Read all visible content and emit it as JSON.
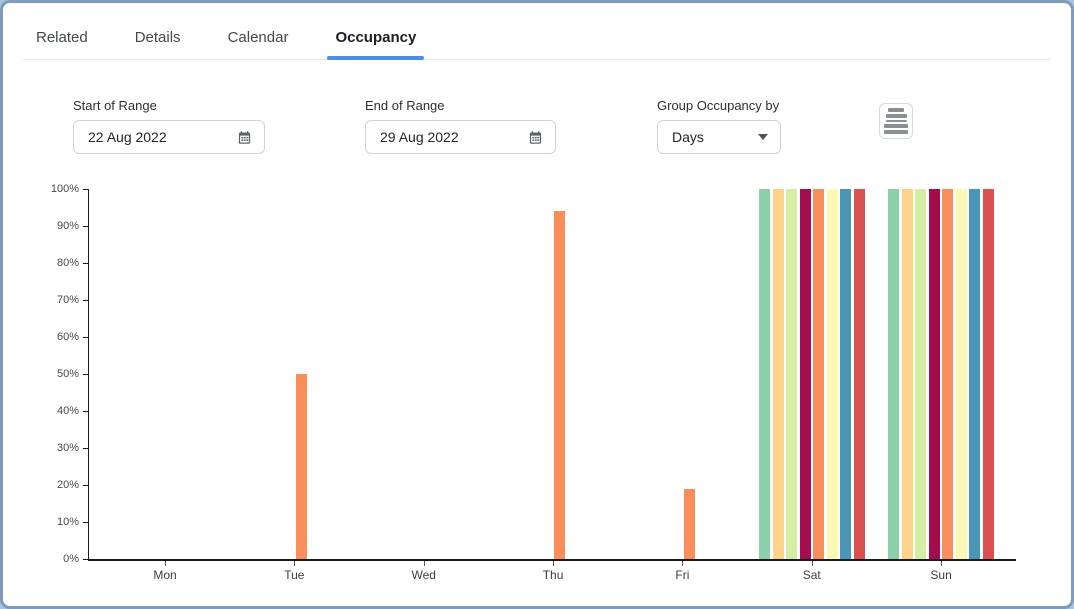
{
  "tabs": [
    {
      "label": "Related",
      "active": false
    },
    {
      "label": "Details",
      "active": false
    },
    {
      "label": "Calendar",
      "active": false
    },
    {
      "label": "Occupancy",
      "active": true
    }
  ],
  "controls": {
    "start_label": "Start of Range",
    "start_value": "22 Aug 2022",
    "end_label": "End of Range",
    "end_value": "29 Aug 2022",
    "group_label": "Group Occupancy by",
    "group_value": "Days"
  },
  "icons": {
    "calendar-icon": "calendar grid glyph",
    "dropdown-caret-icon": "▼",
    "chart-menu-icon": "stacked horizontal bars"
  },
  "colors": {
    "accent": "#4a90e2",
    "card_border": "#7e9bba",
    "page_bg": "#a9c3de",
    "axis": "#17191c"
  },
  "chart_data": {
    "type": "bar",
    "title": "",
    "xlabel": "",
    "ylabel": "",
    "categories": [
      "Mon",
      "Tue",
      "Wed",
      "Thu",
      "Fri",
      "Sat",
      "Sun"
    ],
    "series": [
      {
        "color": "#8bd0a8",
        "values": [
          0,
          0,
          0,
          0,
          0,
          100,
          100
        ]
      },
      {
        "color": "#fdd289",
        "values": [
          0,
          0,
          0,
          0,
          0,
          100,
          100
        ]
      },
      {
        "color": "#d5eea4",
        "values": [
          0,
          0,
          0,
          0,
          0,
          100,
          100
        ]
      },
      {
        "color": "#a30d4d",
        "values": [
          0,
          0,
          0,
          0,
          0,
          100,
          100
        ]
      },
      {
        "color": "#f98e5a",
        "values": [
          0,
          50,
          0,
          94,
          19,
          100,
          100
        ]
      },
      {
        "color": "#faf9b4",
        "values": [
          0,
          0,
          0,
          0,
          0,
          100,
          100
        ]
      },
      {
        "color": "#4b96b4",
        "values": [
          0,
          0,
          0,
          0,
          0,
          100,
          100
        ]
      },
      {
        "color": "#dc5150",
        "values": [
          0,
          0,
          0,
          0,
          0,
          100,
          100
        ]
      }
    ],
    "y_ticks": [
      "0%",
      "10%",
      "20%",
      "30%",
      "40%",
      "50%",
      "60%",
      "70%",
      "80%",
      "90%",
      "100%"
    ],
    "ylim": [
      0,
      100
    ],
    "grid": false,
    "legend": false
  }
}
